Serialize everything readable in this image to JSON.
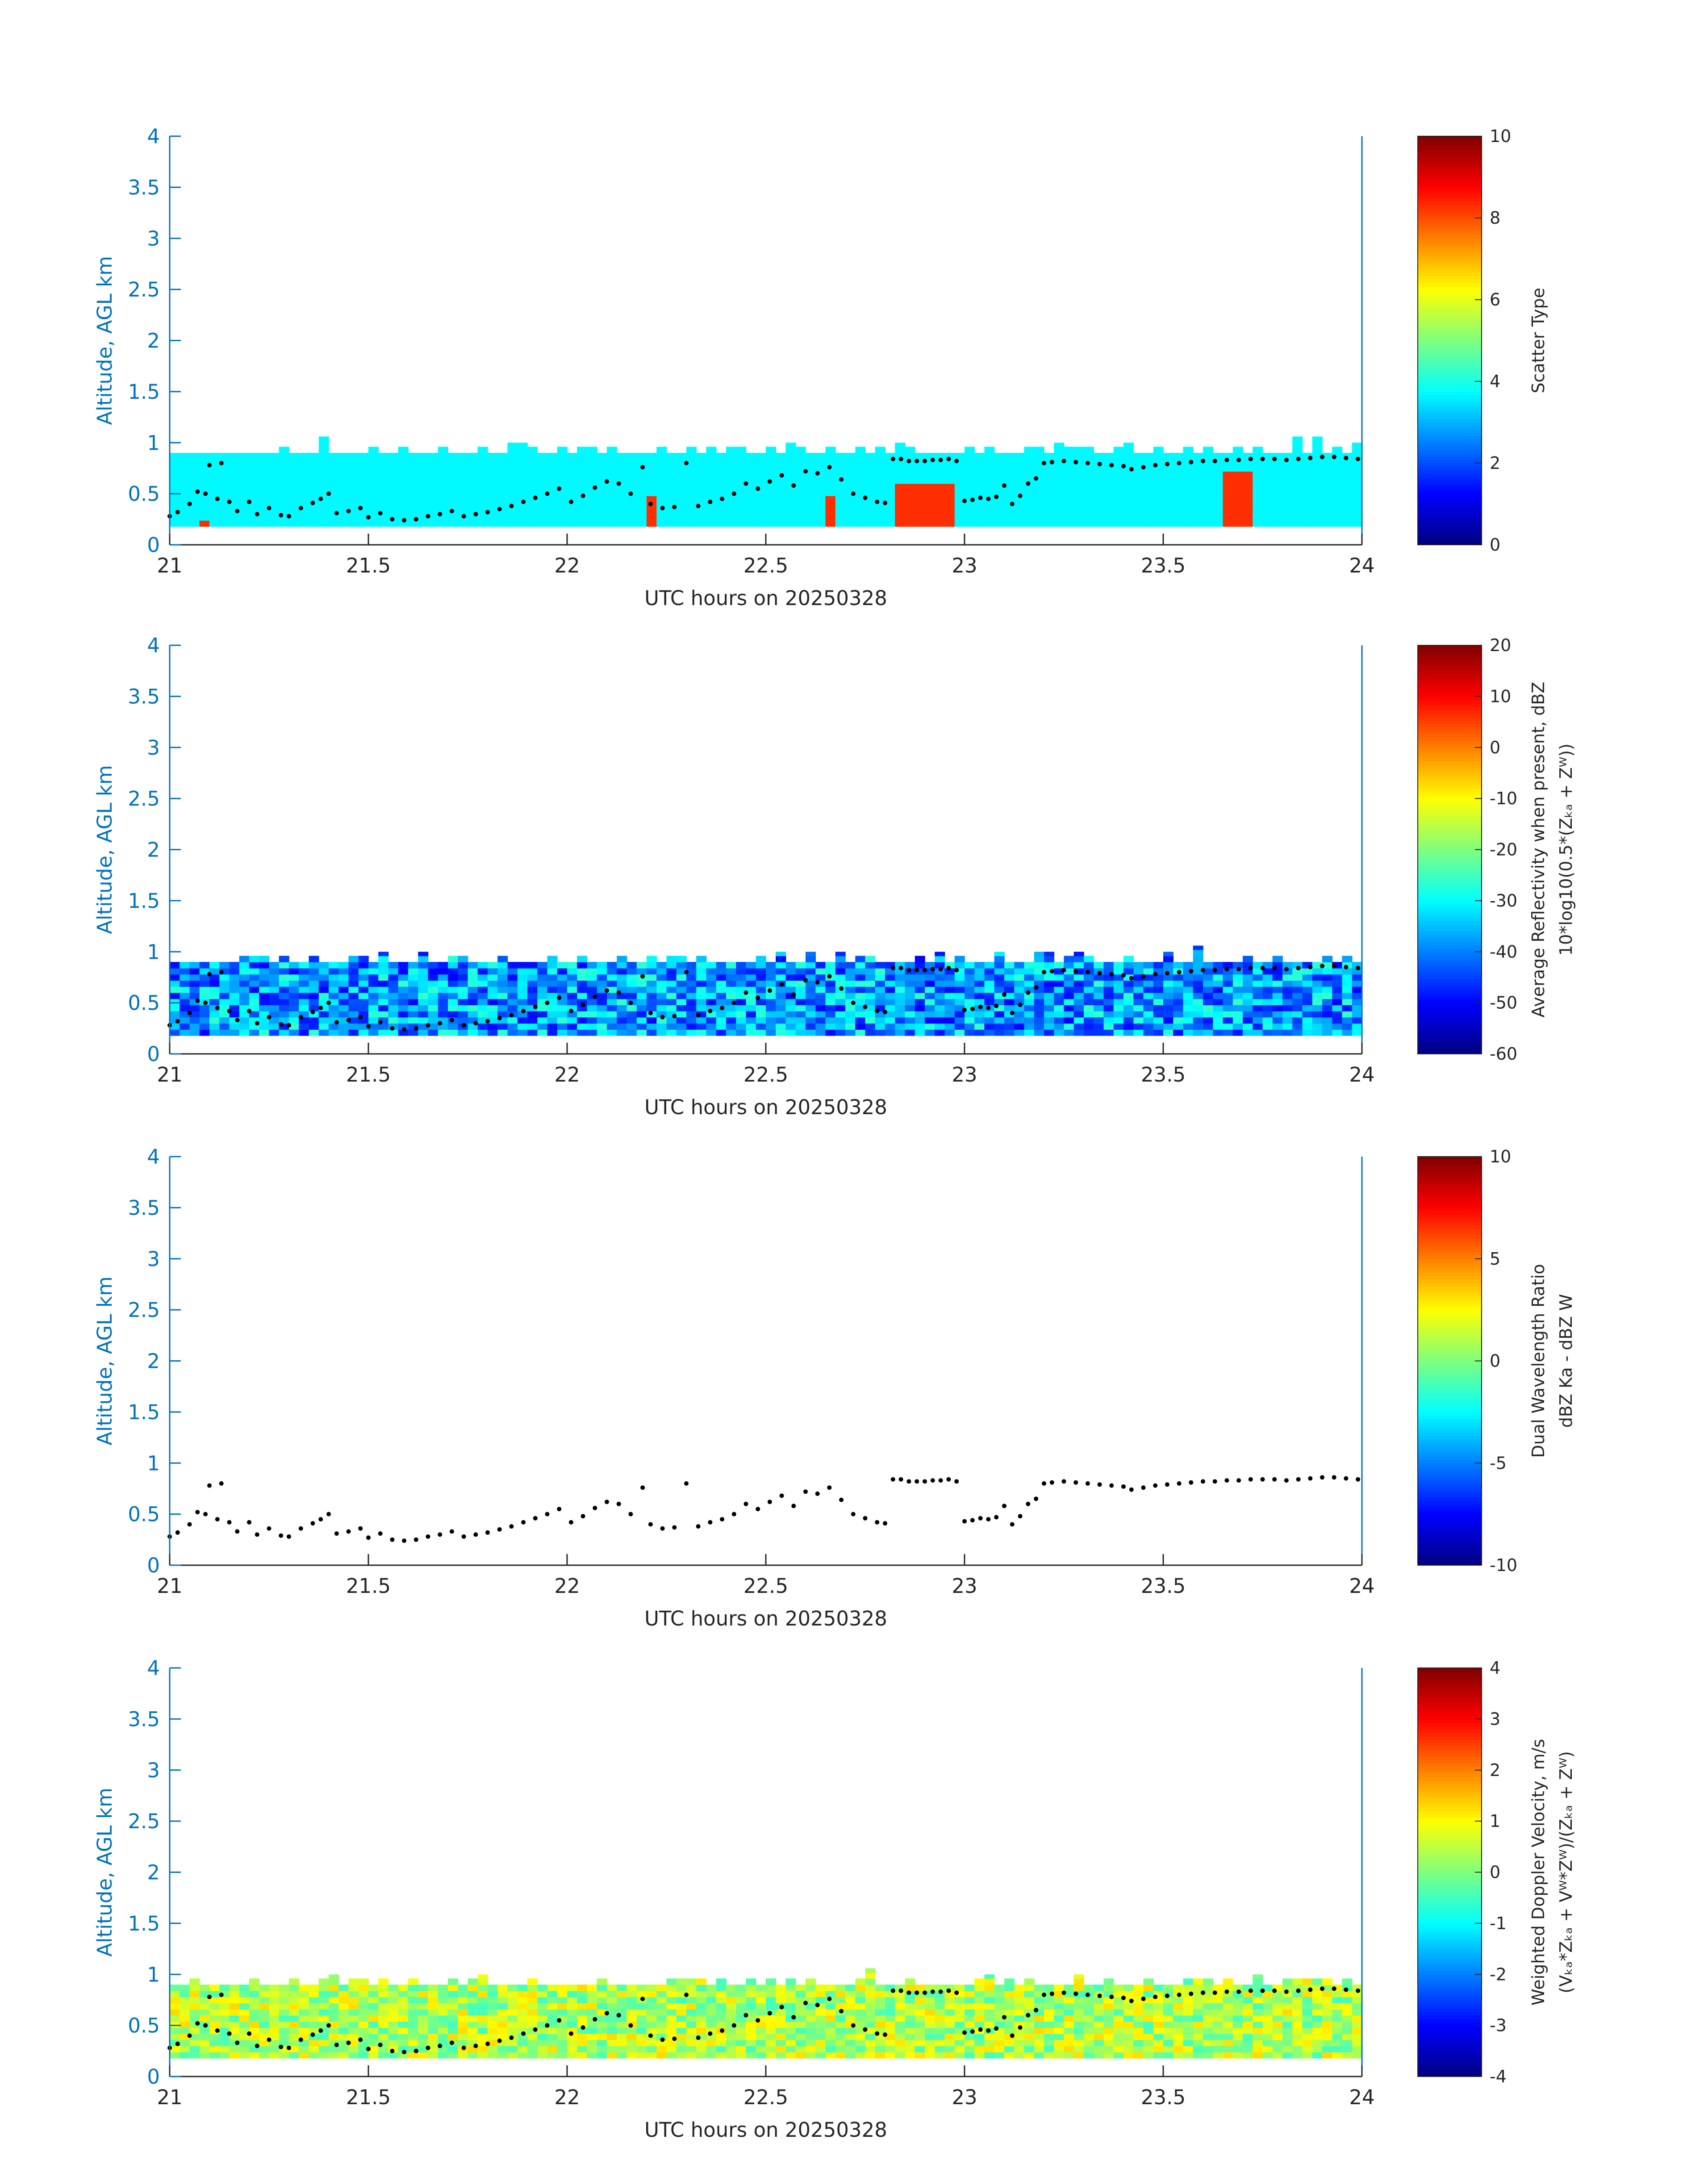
{
  "colors": {
    "axis": "#0072BD",
    "text": "#262626",
    "point": "#000000",
    "background": "#ffffff"
  },
  "chart_data": [
    {
      "type": "heatmap",
      "name": "scatter-type",
      "xlabel": "UTC hours on 20250328",
      "ylabel": "Altitude, AGL km",
      "xlim": [
        21,
        24
      ],
      "ylim": [
        0,
        4
      ],
      "xticks": [
        "21",
        "21.5",
        "22",
        "22.5",
        "23",
        "23.5",
        "24"
      ],
      "yticks": [
        "0",
        "0.5",
        "1",
        "1.5",
        "2",
        "2.5",
        "3",
        "3.5",
        "4"
      ],
      "colorbar": {
        "label": "Scatter Type",
        "label2": "",
        "range": [
          0,
          10
        ],
        "ticks": [
          "0",
          "2",
          "4",
          "6",
          "8",
          "10"
        ]
      },
      "field": {
        "base_value": 3.7,
        "bottom": 0.18,
        "top_base": 0.9,
        "variability": 0,
        "patches": [
          {
            "x": [
              21.07,
              21.09
            ],
            "y": [
              0.18,
              0.25
            ],
            "value": 8.3
          },
          {
            "x": [
              22.2,
              22.23
            ],
            "y": [
              0.18,
              0.48
            ],
            "value": 8.3
          },
          {
            "x": [
              22.65,
              22.67
            ],
            "y": [
              0.18,
              0.48
            ],
            "value": 8.3
          },
          {
            "x": [
              22.83,
              22.97
            ],
            "y": [
              0.18,
              0.6
            ],
            "value": 8.3
          },
          {
            "x": [
              23.65,
              23.72
            ],
            "y": [
              0.18,
              0.72
            ],
            "value": 8.3
          }
        ]
      }
    },
    {
      "type": "heatmap",
      "name": "reflectivity",
      "xlabel": "UTC hours on 20250328",
      "ylabel": "Altitude, AGL km",
      "xlim": [
        21,
        24
      ],
      "ylim": [
        0,
        4
      ],
      "xticks": [
        "21",
        "21.5",
        "22",
        "22.5",
        "23",
        "23.5",
        "24"
      ],
      "yticks": [
        "0",
        "0.5",
        "1",
        "1.5",
        "2",
        "2.5",
        "3",
        "3.5",
        "4"
      ],
      "colorbar": {
        "label": "Average Reflectivity when present, dBZ",
        "label2": "10*log10(0.5*(Zₖₐ + Zᵂ))",
        "range": [
          -60,
          20
        ],
        "ticks": [
          "-60",
          "-50",
          "-40",
          "-30",
          "-20",
          "-10",
          "0",
          "10",
          "20"
        ]
      },
      "field": {
        "base_value": -38,
        "bottom": 0.18,
        "top_base": 0.9,
        "variability": 12,
        "patches": []
      }
    },
    {
      "type": "scatter",
      "name": "dual-wavelength-ratio",
      "xlabel": "UTC hours on 20250328",
      "ylabel": "Altitude, AGL km",
      "xlim": [
        21,
        24
      ],
      "ylim": [
        0,
        4
      ],
      "xticks": [
        "21",
        "21.5",
        "22",
        "22.5",
        "23",
        "23.5",
        "24"
      ],
      "yticks": [
        "0",
        "0.5",
        "1",
        "1.5",
        "2",
        "2.5",
        "3",
        "3.5",
        "4"
      ],
      "colorbar": {
        "label": "Dual Wavelength Ratio",
        "label2": "dBZ Ka - dBZ W",
        "range": [
          -10,
          10
        ],
        "ticks": [
          "-10",
          "-5",
          "0",
          "5",
          "10"
        ]
      },
      "field": null
    },
    {
      "type": "heatmap",
      "name": "doppler-velocity",
      "xlabel": "UTC hours on 20250328",
      "ylabel": "Altitude, AGL km",
      "xlim": [
        21,
        24
      ],
      "ylim": [
        0,
        4
      ],
      "xticks": [
        "21",
        "21.5",
        "22",
        "22.5",
        "23",
        "23.5",
        "24"
      ],
      "yticks": [
        "0",
        "0.5",
        "1",
        "1.5",
        "2",
        "2.5",
        "3",
        "3.5",
        "4"
      ],
      "colorbar": {
        "label": "Weighted Doppler Velocity, m/s",
        "label2": "(Vₖₐ*Zₖₐ + Vᵂ*Zᵂ)/(Zₖₐ + Zᵂ)",
        "range": [
          -4,
          4
        ],
        "ticks": [
          "-4",
          "-3",
          "-2",
          "-1",
          "0",
          "1",
          "2",
          "3",
          "4"
        ]
      },
      "field": {
        "base_value": 0.4,
        "bottom": 0.18,
        "top_base": 0.9,
        "variability": 0.9,
        "patches": []
      }
    }
  ],
  "cloud_base_points": {
    "x": [
      21.0,
      21.02,
      21.05,
      21.07,
      21.09,
      21.1,
      21.12,
      21.13,
      21.15,
      21.17,
      21.2,
      21.22,
      21.25,
      21.28,
      21.3,
      21.33,
      21.36,
      21.38,
      21.4,
      21.42,
      21.45,
      21.48,
      21.5,
      21.53,
      21.56,
      21.59,
      21.62,
      21.65,
      21.68,
      21.71,
      21.74,
      21.77,
      21.8,
      21.83,
      21.86,
      21.89,
      21.92,
      21.95,
      21.98,
      22.01,
      22.04,
      22.07,
      22.1,
      22.13,
      22.16,
      22.19,
      22.21,
      22.24,
      22.27,
      22.3,
      22.33,
      22.36,
      22.39,
      22.42,
      22.45,
      22.48,
      22.51,
      22.54,
      22.57,
      22.6,
      22.63,
      22.66,
      22.69,
      22.72,
      22.75,
      22.78,
      22.8,
      22.82,
      22.84,
      22.86,
      22.88,
      22.9,
      22.92,
      22.94,
      22.96,
      22.98,
      23.0,
      23.02,
      23.04,
      23.06,
      23.08,
      23.1,
      23.12,
      23.14,
      23.16,
      23.18,
      23.2,
      23.22,
      23.25,
      23.28,
      23.31,
      23.34,
      23.37,
      23.4,
      23.42,
      23.45,
      23.48,
      23.51,
      23.54,
      23.57,
      23.6,
      23.63,
      23.66,
      23.69,
      23.72,
      23.75,
      23.78,
      23.81,
      23.84,
      23.87,
      23.9,
      23.93,
      23.96,
      23.99
    ],
    "y": [
      0.28,
      0.32,
      0.4,
      0.52,
      0.5,
      0.78,
      0.45,
      0.8,
      0.42,
      0.33,
      0.42,
      0.3,
      0.36,
      0.29,
      0.28,
      0.36,
      0.41,
      0.45,
      0.5,
      0.31,
      0.33,
      0.36,
      0.27,
      0.31,
      0.25,
      0.24,
      0.25,
      0.28,
      0.3,
      0.33,
      0.28,
      0.3,
      0.32,
      0.35,
      0.38,
      0.42,
      0.46,
      0.5,
      0.55,
      0.42,
      0.48,
      0.56,
      0.62,
      0.6,
      0.5,
      0.76,
      0.4,
      0.36,
      0.37,
      0.8,
      0.38,
      0.42,
      0.45,
      0.5,
      0.6,
      0.55,
      0.62,
      0.68,
      0.58,
      0.72,
      0.7,
      0.76,
      0.64,
      0.5,
      0.46,
      0.42,
      0.41,
      0.84,
      0.84,
      0.82,
      0.82,
      0.82,
      0.83,
      0.83,
      0.84,
      0.82,
      0.43,
      0.44,
      0.46,
      0.45,
      0.47,
      0.58,
      0.4,
      0.48,
      0.6,
      0.65,
      0.8,
      0.81,
      0.82,
      0.81,
      0.8,
      0.79,
      0.78,
      0.77,
      0.74,
      0.76,
      0.78,
      0.79,
      0.8,
      0.81,
      0.82,
      0.82,
      0.83,
      0.83,
      0.84,
      0.84,
      0.84,
      0.83,
      0.84,
      0.85,
      0.86,
      0.86,
      0.85,
      0.84
    ]
  }
}
